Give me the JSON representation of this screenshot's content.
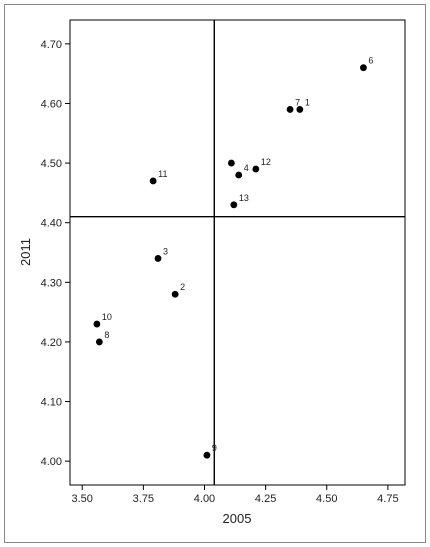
{
  "chart_data": {
    "type": "scatter",
    "title": "",
    "xlabel": "2005",
    "ylabel": "2011",
    "xlim": [
      3.45,
      4.82
    ],
    "ylim": [
      3.96,
      4.74
    ],
    "xticks": [
      3.5,
      3.75,
      4.0,
      4.25,
      4.5,
      4.75
    ],
    "xtick_labels": [
      "3.50",
      "3.75",
      "4.00",
      "4.25",
      "4.50",
      "4.75"
    ],
    "yticks": [
      4.0,
      4.1,
      4.2,
      4.3,
      4.4,
      4.5,
      4.6,
      4.7
    ],
    "ytick_labels": [
      "4.00",
      "4.10",
      "4.20",
      "4.30",
      "4.40",
      "4.50",
      "4.60",
      "4.70"
    ],
    "reference_lines": {
      "x": 4.04,
      "y": 4.41
    },
    "grid": false,
    "marker_color": "#000000",
    "points": [
      {
        "label": "1",
        "x": 4.39,
        "y": 4.59
      },
      {
        "label": "2",
        "x": 3.88,
        "y": 4.28
      },
      {
        "label": "3",
        "x": 3.81,
        "y": 4.34
      },
      {
        "label": "4",
        "x": 4.14,
        "y": 4.48
      },
      {
        "label": "",
        "x": 4.11,
        "y": 4.5
      },
      {
        "label": "6",
        "x": 4.65,
        "y": 4.66
      },
      {
        "label": "7",
        "x": 4.35,
        "y": 4.59
      },
      {
        "label": "8",
        "x": 3.57,
        "y": 4.2
      },
      {
        "label": "9",
        "x": 4.01,
        "y": 4.01
      },
      {
        "label": "10",
        "x": 3.56,
        "y": 4.23
      },
      {
        "label": "11",
        "x": 3.79,
        "y": 4.47
      },
      {
        "label": "12",
        "x": 4.21,
        "y": 4.49
      },
      {
        "label": "13",
        "x": 4.12,
        "y": 4.43
      }
    ]
  }
}
